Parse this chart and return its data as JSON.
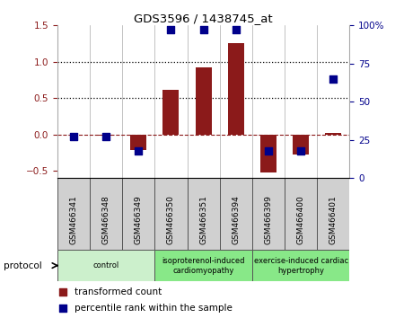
{
  "title": "GDS3596 / 1438745_at",
  "samples": [
    "GSM466341",
    "GSM466348",
    "GSM466349",
    "GSM466350",
    "GSM466351",
    "GSM466394",
    "GSM466399",
    "GSM466400",
    "GSM466401"
  ],
  "transformed_count": [
    0.0,
    -0.02,
    -0.22,
    0.62,
    0.92,
    1.26,
    -0.52,
    -0.28,
    0.02
  ],
  "percentile_rank": [
    27,
    27,
    18,
    97,
    97,
    97,
    18,
    18,
    65
  ],
  "bar_color": "#8b1a1a",
  "dot_color": "#00008b",
  "ylim_left": [
    -0.6,
    1.5
  ],
  "ylim_right": [
    0,
    100
  ],
  "yticks_left": [
    -0.5,
    0.0,
    0.5,
    1.0,
    1.5
  ],
  "yticks_right": [
    0,
    25,
    50,
    75,
    100
  ],
  "hlines": [
    0.5,
    1.0
  ],
  "groups": [
    {
      "label": "control",
      "start": 0,
      "end": 3,
      "color": "#ccf0cc"
    },
    {
      "label": "isoproterenol-induced\ncardiomyopathy",
      "start": 3,
      "end": 6,
      "color": "#88e888"
    },
    {
      "label": "exercise-induced cardiac\nhypertrophy",
      "start": 6,
      "end": 9,
      "color": "#88e888"
    }
  ],
  "protocol_label": "protocol",
  "legend_items": [
    {
      "label": "transformed count",
      "color": "#8b1a1a"
    },
    {
      "label": "percentile rank within the sample",
      "color": "#00008b"
    }
  ],
  "bar_width": 0.5,
  "dot_size": 30
}
